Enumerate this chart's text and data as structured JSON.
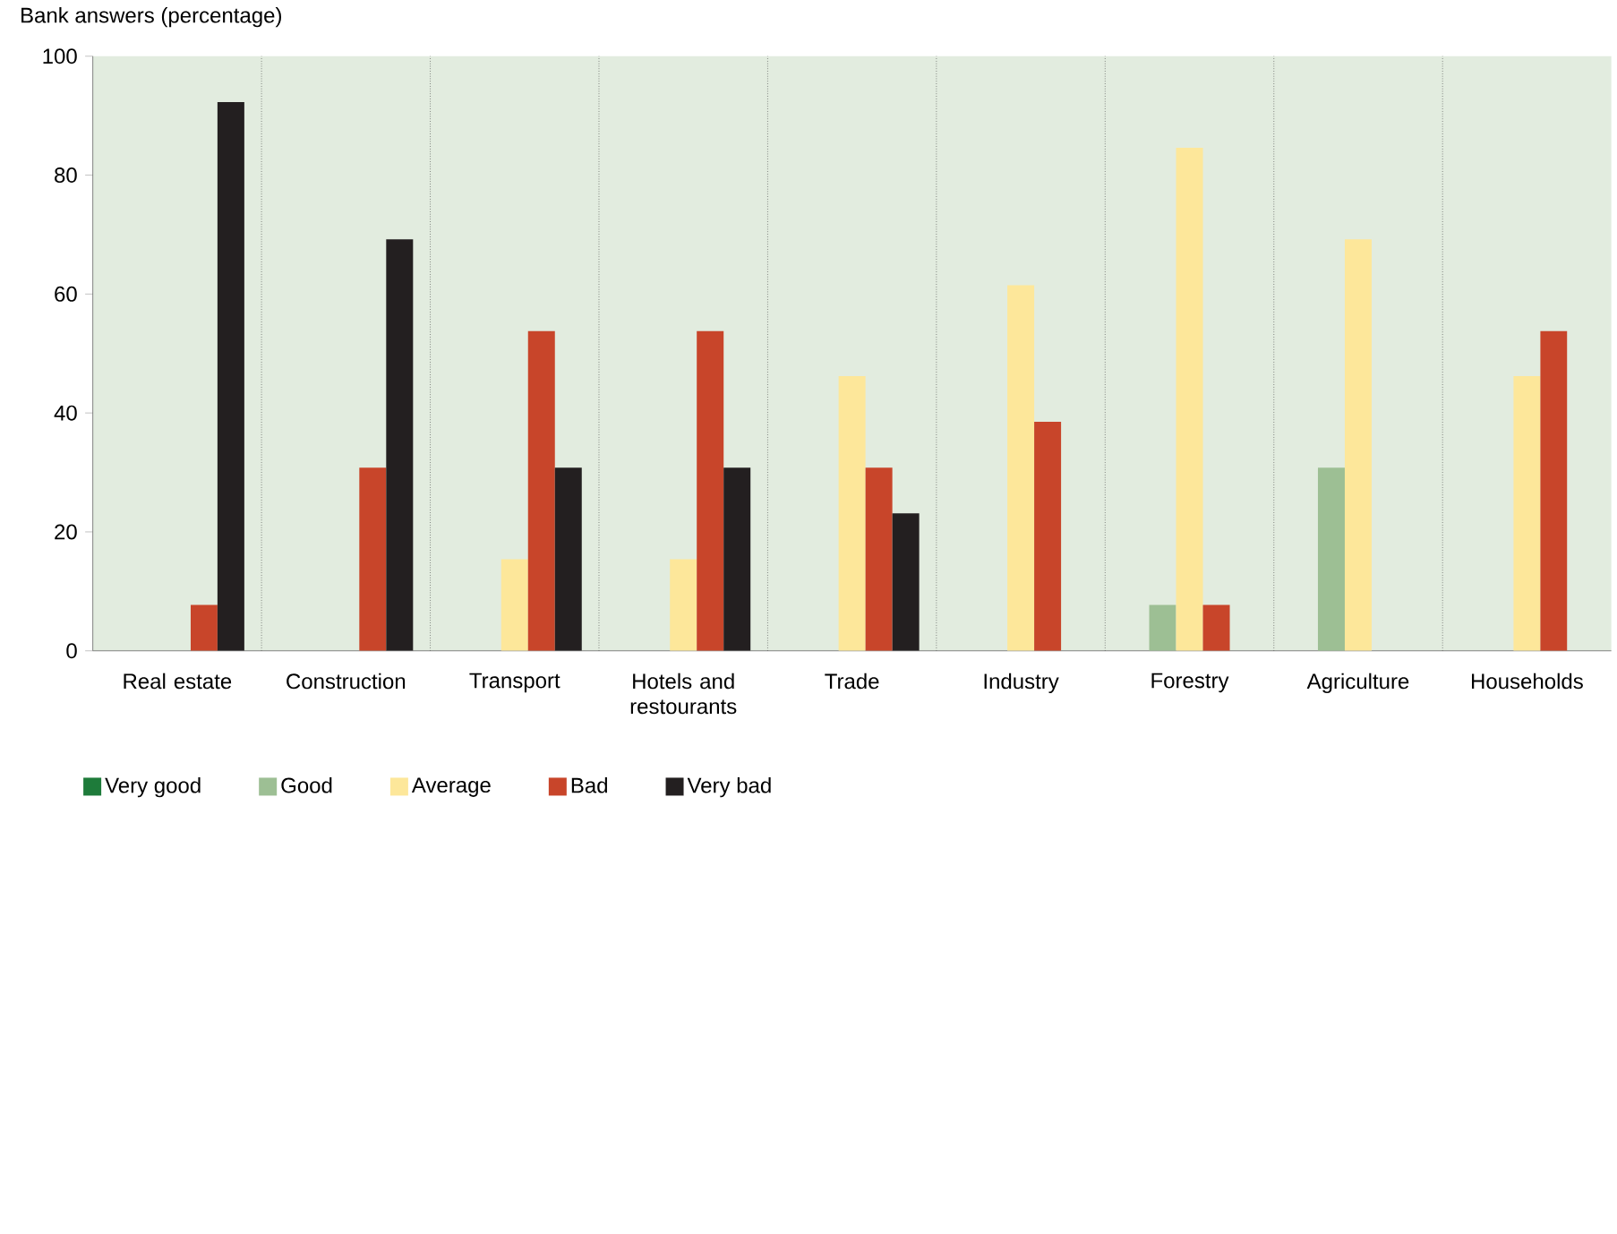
{
  "chart_data": {
    "type": "bar",
    "ylabel": "Bank answers (percentage)",
    "categories": [
      "Real estate",
      "Construction",
      "Transport",
      "Hotels and restourants",
      "Trade",
      "Industry",
      "Forestry",
      "Agriculture",
      "Households"
    ],
    "series": [
      {
        "name": "Very good",
        "color": "#1e7b3a",
        "values": [
          0,
          0,
          0,
          0,
          0,
          0,
          0,
          0,
          0
        ]
      },
      {
        "name": "Good",
        "color": "#9dbf94",
        "values": [
          0,
          0,
          0,
          0,
          0,
          0,
          7.7,
          30.8,
          0
        ]
      },
      {
        "name": "Average",
        "color": "#fde79a",
        "values": [
          0,
          0,
          15.4,
          15.4,
          46.2,
          61.5,
          84.6,
          69.2,
          46.2
        ]
      },
      {
        "name": "Bad",
        "color": "#c8452a",
        "values": [
          7.7,
          30.8,
          53.8,
          53.8,
          30.8,
          38.5,
          7.7,
          0,
          53.8
        ]
      },
      {
        "name": "Very bad",
        "color": "#231f20",
        "values": [
          92.3,
          69.2,
          30.8,
          30.8,
          23.1,
          0,
          0,
          0,
          0
        ]
      }
    ],
    "ylim": [
      0,
      100
    ],
    "yticks": [
      0,
      20,
      40,
      60,
      80,
      100
    ],
    "grid": "x",
    "legend": "bottom"
  }
}
